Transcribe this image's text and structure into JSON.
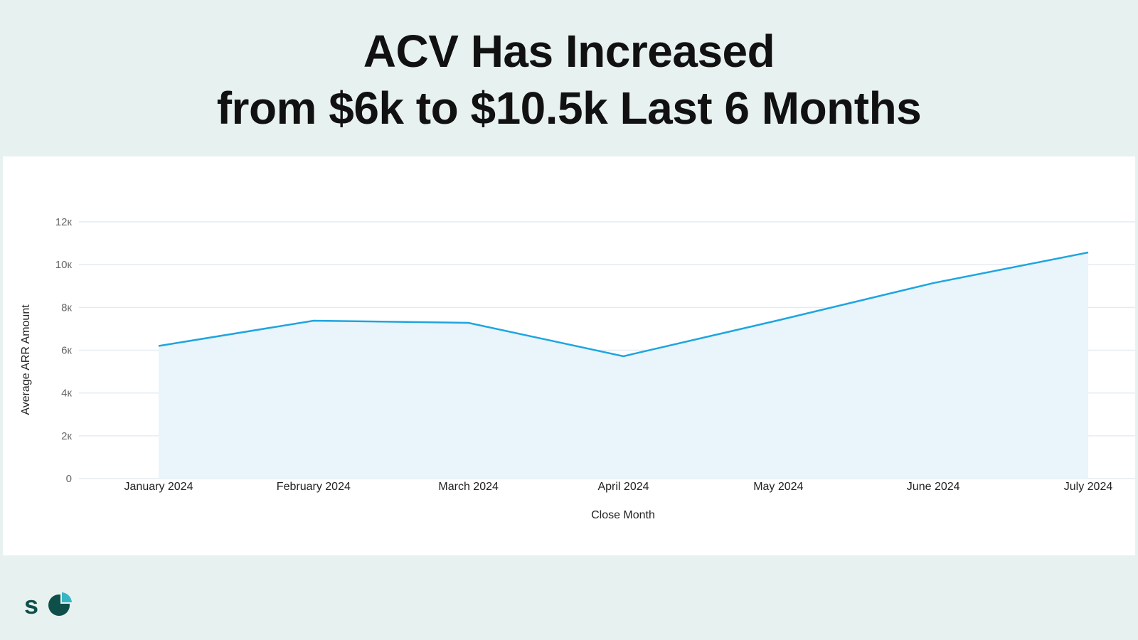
{
  "title": {
    "line1": "ACV Has Increased",
    "line2": "from $6k to $10.5k Last 6 Months"
  },
  "colors": {
    "line": "#1ea5e0",
    "fill": "#e9f4fb",
    "grid": "#e4ecf2",
    "logo_dark": "#0f4f4a",
    "logo_accent": "#35b6c4"
  },
  "logo": {
    "text": "sc"
  },
  "chart_data": {
    "type": "area",
    "categories": [
      "January 2024",
      "February 2024",
      "March 2024",
      "April 2024",
      "May 2024",
      "June 2024",
      "July 2024"
    ],
    "values": [
      6200,
      7380,
      7280,
      5720,
      7400,
      9140,
      10570
    ],
    "xlabel": "Close Month",
    "ylabel": "Average ARR Amount",
    "ylim": [
      0,
      12000
    ],
    "yticks": [
      {
        "v": 0,
        "label": "0"
      },
      {
        "v": 2000,
        "label": "2к"
      },
      {
        "v": 4000,
        "label": "4к"
      },
      {
        "v": 6000,
        "label": "6к"
      },
      {
        "v": 8000,
        "label": "8к"
      },
      {
        "v": 10000,
        "label": "10к"
      },
      {
        "v": 12000,
        "label": "12к"
      }
    ],
    "grid": true
  }
}
